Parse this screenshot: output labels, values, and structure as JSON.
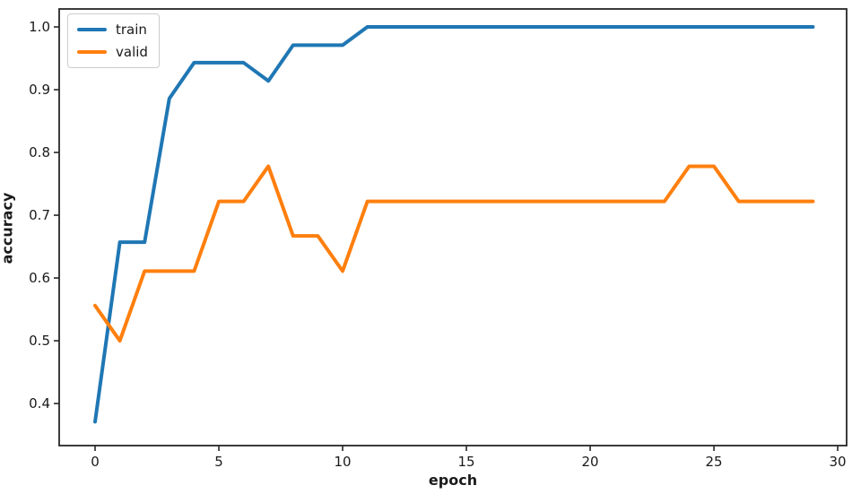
{
  "figure": {
    "background": "#ffffff",
    "spine_color": "#262626",
    "tick_color": "#262626",
    "text_color": "#1a1a1a"
  },
  "legend": {
    "position": "upper left",
    "items": [
      {
        "label": "train",
        "color": "#1f77b4"
      },
      {
        "label": "valid",
        "color": "#ff7f0e"
      }
    ]
  },
  "chart_data": {
    "type": "line",
    "title": "",
    "xlabel": "epoch",
    "ylabel": "accuracy",
    "x": [
      0,
      1,
      2,
      3,
      4,
      5,
      6,
      7,
      8,
      9,
      10,
      11,
      12,
      13,
      14,
      15,
      16,
      17,
      18,
      19,
      20,
      21,
      22,
      23,
      24,
      25,
      26,
      27,
      28,
      29
    ],
    "series": [
      {
        "name": "train",
        "color": "#1f77b4",
        "values": [
          0.371,
          0.657,
          0.657,
          0.886,
          0.943,
          0.943,
          0.943,
          0.914,
          0.971,
          0.971,
          0.971,
          1.0,
          1.0,
          1.0,
          1.0,
          1.0,
          1.0,
          1.0,
          1.0,
          1.0,
          1.0,
          1.0,
          1.0,
          1.0,
          1.0,
          1.0,
          1.0,
          1.0,
          1.0,
          1.0
        ]
      },
      {
        "name": "valid",
        "color": "#ff7f0e",
        "values": [
          0.556,
          0.5,
          0.611,
          0.611,
          0.611,
          0.722,
          0.722,
          0.778,
          0.667,
          0.667,
          0.611,
          0.722,
          0.722,
          0.722,
          0.722,
          0.722,
          0.722,
          0.722,
          0.722,
          0.722,
          0.722,
          0.722,
          0.722,
          0.722,
          0.778,
          0.778,
          0.722,
          0.722,
          0.722,
          0.722
        ]
      }
    ],
    "xticks": [
      0,
      5,
      10,
      15,
      20,
      25,
      30
    ],
    "yticks": [
      0.4,
      0.5,
      0.6,
      0.7,
      0.8,
      0.9,
      1.0
    ],
    "ytick_labels": [
      "0.4",
      "0.5",
      "0.6",
      "0.7",
      "0.8",
      "0.9",
      "1.0"
    ],
    "xtick_labels": [
      "0",
      "5",
      "10",
      "15",
      "20",
      "25",
      "30"
    ],
    "xlim": [
      -1.45,
      30.36
    ],
    "ylim": [
      0.333,
      1.0286
    ],
    "grid": false,
    "legend_position": "upper left",
    "line_width": 4
  }
}
